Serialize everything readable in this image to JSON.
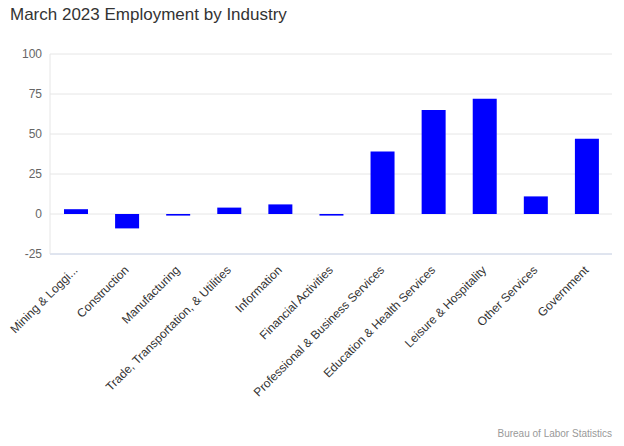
{
  "chart_data": {
    "type": "bar",
    "title": "March 2023 Employment by Industry",
    "source": "Bureau of Labor Statistics",
    "categories": [
      "Mining & Loggi...",
      "Construction",
      "Manufacturing",
      "Trade, Transportation, & Utilities",
      "Information",
      "Financial Activities",
      "Professional & Business Services",
      "Education & Health Services",
      "Leisure & Hospitality",
      "Other Services",
      "Government"
    ],
    "values": [
      3,
      -9,
      -1,
      4,
      6,
      -1,
      39,
      65,
      72,
      11,
      47
    ],
    "color": "#0000ff",
    "ylim": [
      -25,
      100
    ],
    "yticks": [
      -25,
      0,
      25,
      50,
      75,
      100
    ],
    "grid": true
  }
}
